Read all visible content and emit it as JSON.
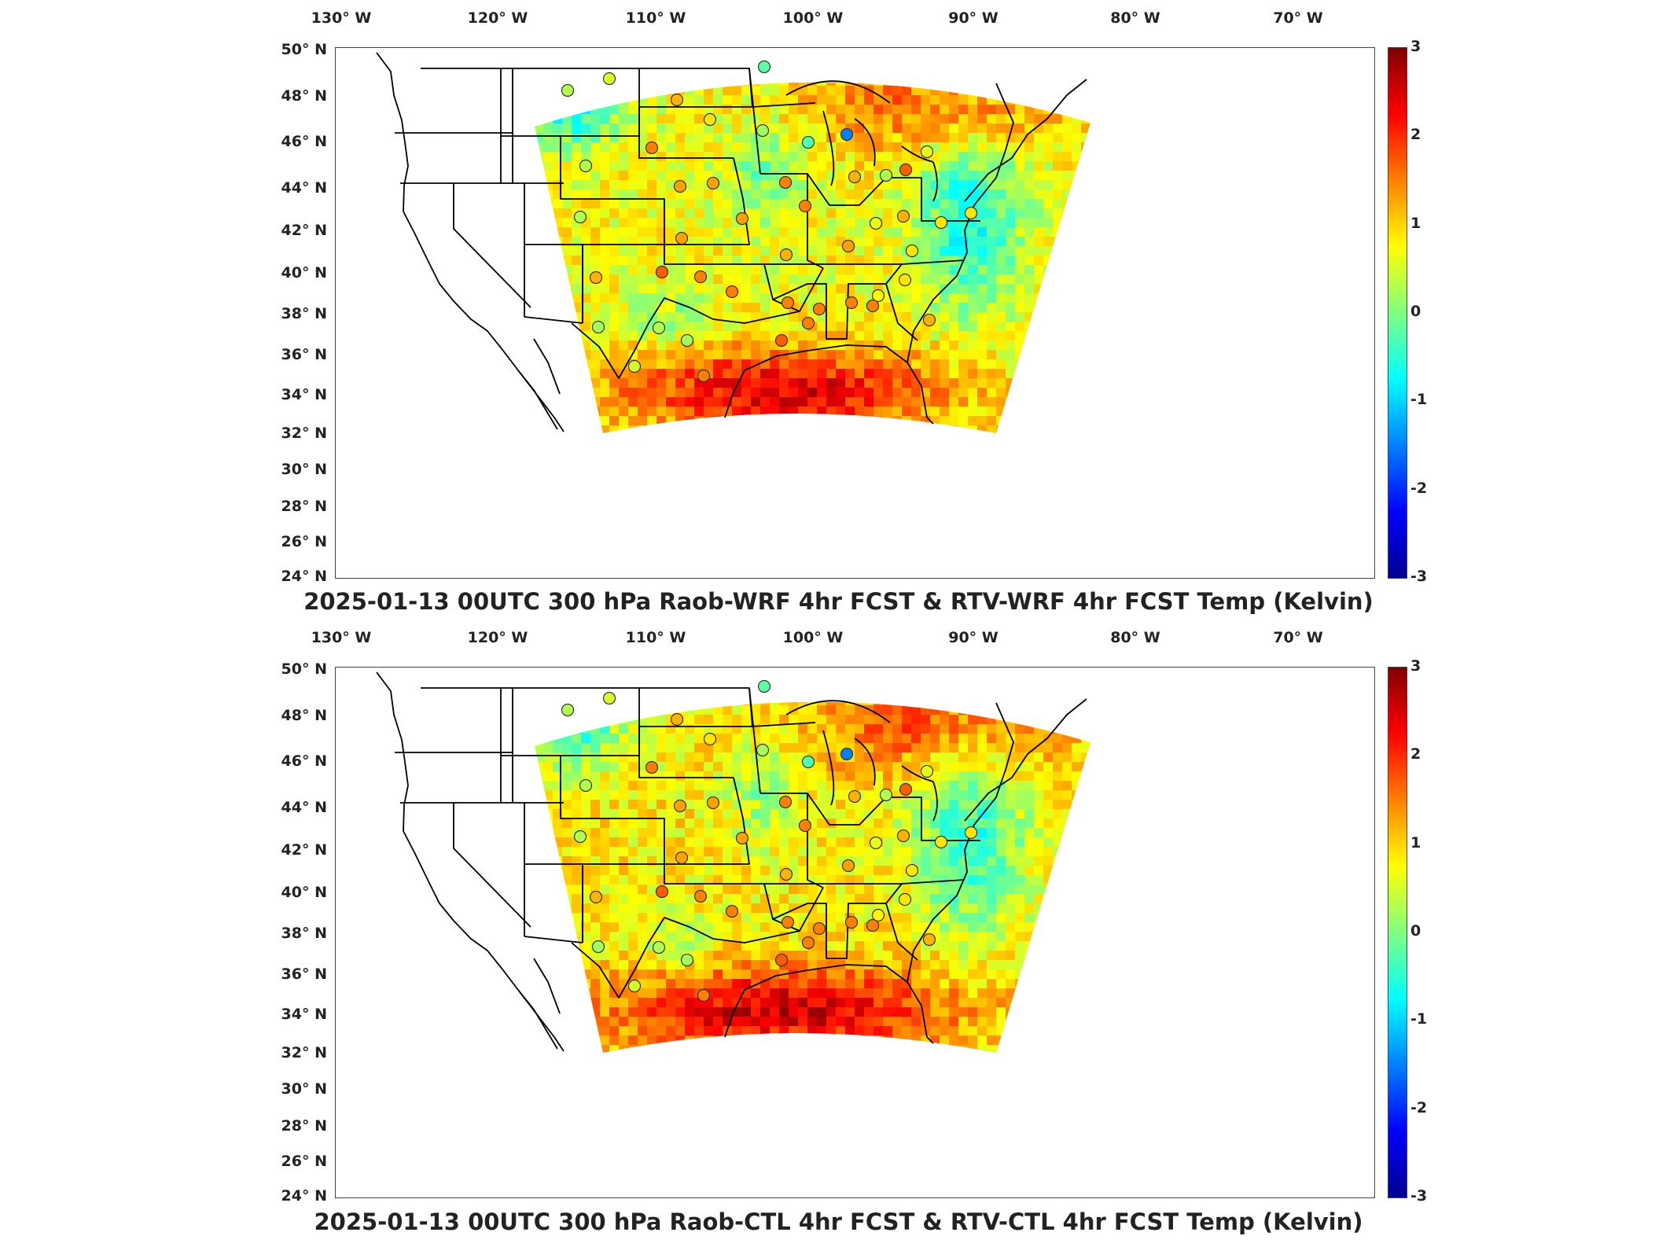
{
  "colorbar": {
    "ticks": [
      "3",
      "2",
      "1",
      "0",
      "-1",
      "-2",
      "-3"
    ],
    "colors": [
      "#800000",
      "#ff0000",
      "#ff8000",
      "#ffff00",
      "#80ff80",
      "#00ffff",
      "#0080ff",
      "#0000ff",
      "#00008f"
    ]
  },
  "lon_labels": [
    "130° W",
    "120° W",
    "110° W",
    "100° W",
    "90° W",
    "80° W",
    "70° W"
  ],
  "lat_labels": [
    "50° N",
    "48° N",
    "46° N",
    "44° N",
    "42° N",
    "40° N",
    "38° N",
    "36° N",
    "34° N",
    "32° N",
    "30° N",
    "28° N",
    "26° N",
    "24° N"
  ],
  "panels": [
    {
      "title": "2025-01-13 00UTC 300 hPa Raob-WRF 4hr FCST & RTV-WRF 4hr FCST Temp (Kelvin)"
    },
    {
      "title": "2025-01-13 00UTC 300 hPa Raob-CTL 4hr FCST & RTV-CTL 4hr FCST Temp (Kelvin)"
    }
  ]
}
